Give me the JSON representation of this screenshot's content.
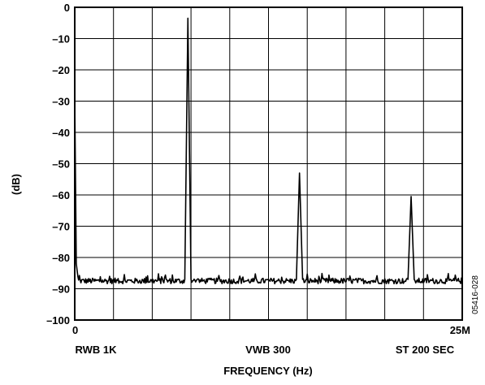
{
  "chart_data": {
    "type": "line",
    "title": "",
    "xlabel": "FREQUENCY (Hz)",
    "ylabel": "(dB)",
    "xlim": [
      0,
      25
    ],
    "ylim": [
      -100,
      0
    ],
    "x_unit": "MHz",
    "x_tick_labels": [
      {
        "x": 0,
        "label": "0"
      },
      {
        "x": 25,
        "label": "25M"
      }
    ],
    "y_ticks": [
      0,
      -10,
      -20,
      -30,
      -40,
      -50,
      -60,
      -70,
      -80,
      -90,
      -100
    ],
    "y_tick_labels": [
      "0",
      "–10",
      "–20",
      "–30",
      "–40",
      "–50",
      "–60",
      "–70",
      "–80",
      "–90",
      "–100"
    ],
    "grid": true,
    "grid_divisions": {
      "x": 10,
      "y": 10
    },
    "noise_floor_db": -87.5,
    "series": [
      {
        "points": [
          {
            "x": 0.0,
            "y": -29
          },
          {
            "x": 0.1,
            "y": -82
          },
          {
            "x": 0.2,
            "y": -86
          },
          {
            "x": 7.1,
            "y": -87
          },
          {
            "x": 7.3,
            "y": -3.5
          },
          {
            "x": 7.5,
            "y": -87
          },
          {
            "x": 14.3,
            "y": -87
          },
          {
            "x": 14.5,
            "y": -53
          },
          {
            "x": 14.7,
            "y": -87
          },
          {
            "x": 21.5,
            "y": -87
          },
          {
            "x": 21.7,
            "y": -60.5
          },
          {
            "x": 21.9,
            "y": -87
          },
          {
            "x": 25.0,
            "y": -87
          }
        ]
      }
    ],
    "footer_labels": {
      "left": "RWB 1K",
      "center": "VWB 300",
      "right": "ST 200 SEC"
    },
    "figure_id": "05416-028"
  },
  "colors": {
    "trace": "#000000",
    "grid": "#000000",
    "background": "#ffffff"
  }
}
